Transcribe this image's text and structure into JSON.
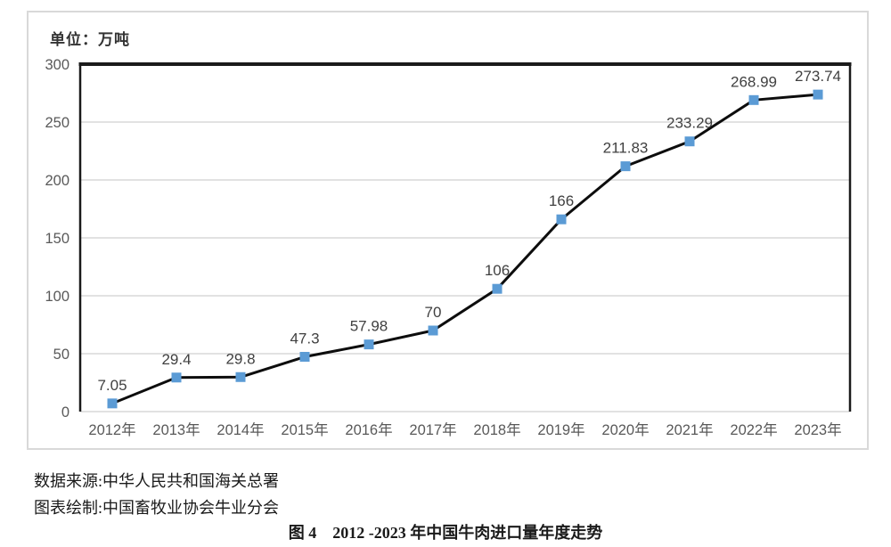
{
  "unit_label": "单位：万吨",
  "footer": {
    "source": "数据来源:中华人民共和国海关总署",
    "drawer": "图表绘制:中国畜牧业协会牛业分会",
    "caption": "图 4　2012 -2023 年中国牛肉进口量年度走势"
  },
  "colors": {
    "marker": "#5b9bd5",
    "line": "#0d0d0d",
    "grid": "#d9d9d9",
    "axis_dark": "#1a1a1a",
    "frame": "#d9d9d9",
    "tick_text": "#595959",
    "label_text": "#404040"
  },
  "chart_data": {
    "type": "line",
    "title": "",
    "unit_label": "单位：万吨",
    "categories": [
      "2012年",
      "2013年",
      "2014年",
      "2015年",
      "2016年",
      "2017年",
      "2018年",
      "2019年",
      "2020年",
      "2021年",
      "2022年",
      "2023年"
    ],
    "values": [
      7.05,
      29.4,
      29.8,
      47.3,
      57.98,
      70,
      106,
      166,
      211.83,
      233.29,
      268.99,
      273.74
    ],
    "point_labels": [
      "7.05",
      "29.4",
      "29.8",
      "47.3",
      "57.98",
      "70",
      "106",
      "166",
      "211.83",
      "233.29",
      "268.99",
      "273.74"
    ],
    "xlabel": "",
    "ylabel": "单位：万吨",
    "ylim": [
      0,
      300
    ],
    "yticks": [
      0,
      50,
      100,
      150,
      200,
      250,
      300
    ],
    "grid": true,
    "legend": false,
    "marker_shape": "square"
  }
}
